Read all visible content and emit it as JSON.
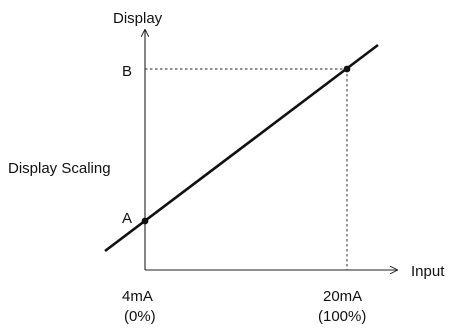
{
  "labels": {
    "y_axis": "Display",
    "x_axis": "Input",
    "point_b": "B",
    "point_a": "A",
    "side": "Display Scaling",
    "x_low_current": "4mA",
    "x_low_percent": "(0%)",
    "x_high_current": "20mA",
    "x_high_percent": "(100%)"
  },
  "colors": {
    "ink": "#111111"
  }
}
